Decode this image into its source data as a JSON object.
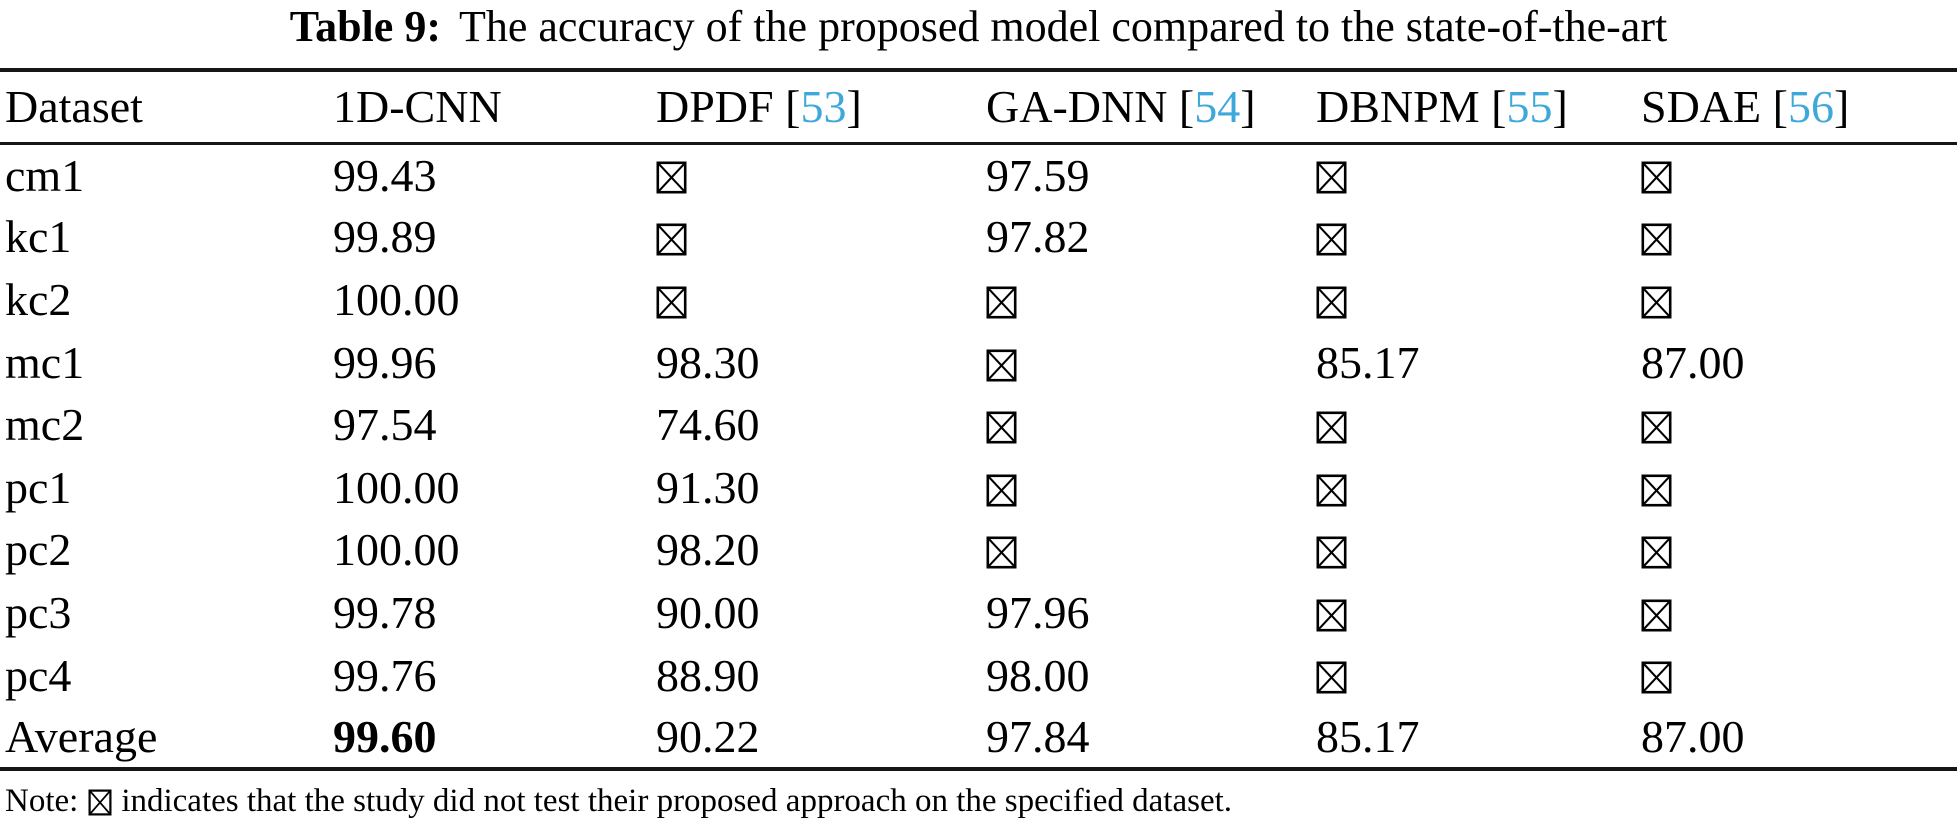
{
  "colors": {
    "text": "#000000",
    "rule": "#161616",
    "citation_blue": "#3fa8db",
    "background": "#ffffff"
  },
  "caption": {
    "label": "Table 9:",
    "text": "The accuracy of the proposed model compared to the state-of-the-art"
  },
  "table": {
    "header": [
      {
        "label": "Dataset"
      },
      {
        "label": "1D-CNN"
      },
      {
        "label": "DPDF",
        "ref": "53"
      },
      {
        "label": "GA-DNN",
        "ref": "54"
      },
      {
        "label": "DBNPM",
        "ref": "55"
      },
      {
        "label": "SDAE",
        "ref": "56"
      }
    ],
    "not_tested_symbol": "crossed-box",
    "rows": [
      {
        "dataset": "cm1",
        "values": [
          "99.43",
          null,
          "97.59",
          null,
          null
        ],
        "bold": []
      },
      {
        "dataset": "kc1",
        "values": [
          "99.89",
          null,
          "97.82",
          null,
          null
        ],
        "bold": []
      },
      {
        "dataset": "kc2",
        "values": [
          "100.00",
          null,
          null,
          null,
          null
        ],
        "bold": []
      },
      {
        "dataset": "mc1",
        "values": [
          "99.96",
          "98.30",
          null,
          "85.17",
          "87.00"
        ],
        "bold": []
      },
      {
        "dataset": "mc2",
        "values": [
          "97.54",
          "74.60",
          null,
          null,
          null
        ],
        "bold": []
      },
      {
        "dataset": "pc1",
        "values": [
          "100.00",
          "91.30",
          null,
          null,
          null
        ],
        "bold": []
      },
      {
        "dataset": "pc2",
        "values": [
          "100.00",
          "98.20",
          null,
          null,
          null
        ],
        "bold": []
      },
      {
        "dataset": "pc3",
        "values": [
          "99.78",
          "90.00",
          "97.96",
          null,
          null
        ],
        "bold": []
      },
      {
        "dataset": "pc4",
        "values": [
          "99.76",
          "88.90",
          "98.00",
          null,
          null
        ],
        "bold": []
      },
      {
        "dataset": "Average",
        "values": [
          "99.60",
          "90.22",
          "97.84",
          "85.17",
          "87.00"
        ],
        "bold": [
          0
        ]
      }
    ]
  },
  "note": {
    "prefix": "Note:",
    "text": "indicates that the study did not test their proposed approach on the specified dataset."
  }
}
